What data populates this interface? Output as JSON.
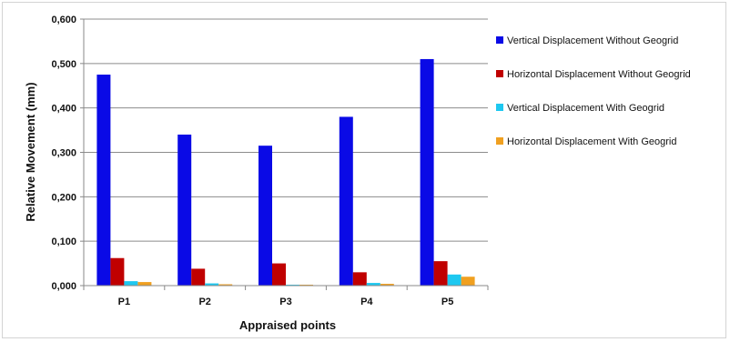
{
  "chart_data": {
    "type": "bar",
    "title": "",
    "xlabel": "Appraised points",
    "ylabel": "Relative Movement (mm)",
    "categories": [
      "P1",
      "P2",
      "P3",
      "P4",
      "P5"
    ],
    "ylim": [
      0,
      0.6
    ],
    "yticks": [
      {
        "value": 0.0,
        "label": "0,000"
      },
      {
        "value": 0.1,
        "label": "0,100"
      },
      {
        "value": 0.2,
        "label": "0,200"
      },
      {
        "value": 0.3,
        "label": "0,300"
      },
      {
        "value": 0.4,
        "label": "0,400"
      },
      {
        "value": 0.5,
        "label": "0,500"
      },
      {
        "value": 0.6,
        "label": "0,600"
      }
    ],
    "grid": "horizontal",
    "legend_position": "right",
    "series": [
      {
        "name": "Vertical Displacement Without Geogrid",
        "color": "#0a0ae6",
        "values": [
          0.475,
          0.34,
          0.315,
          0.38,
          0.51
        ]
      },
      {
        "name": "Horizontal Displacement Without Geogrid",
        "color": "#c00000",
        "values": [
          0.062,
          0.038,
          0.05,
          0.03,
          0.055
        ]
      },
      {
        "name": "Vertical Displacement With Geogrid",
        "color": "#1ec8f0",
        "values": [
          0.01,
          0.005,
          0.002,
          0.006,
          0.025
        ]
      },
      {
        "name": "Horizontal Displacement With Geogrid",
        "color": "#f0a020",
        "values": [
          0.008,
          0.003,
          0.002,
          0.004,
          0.02
        ]
      }
    ]
  }
}
